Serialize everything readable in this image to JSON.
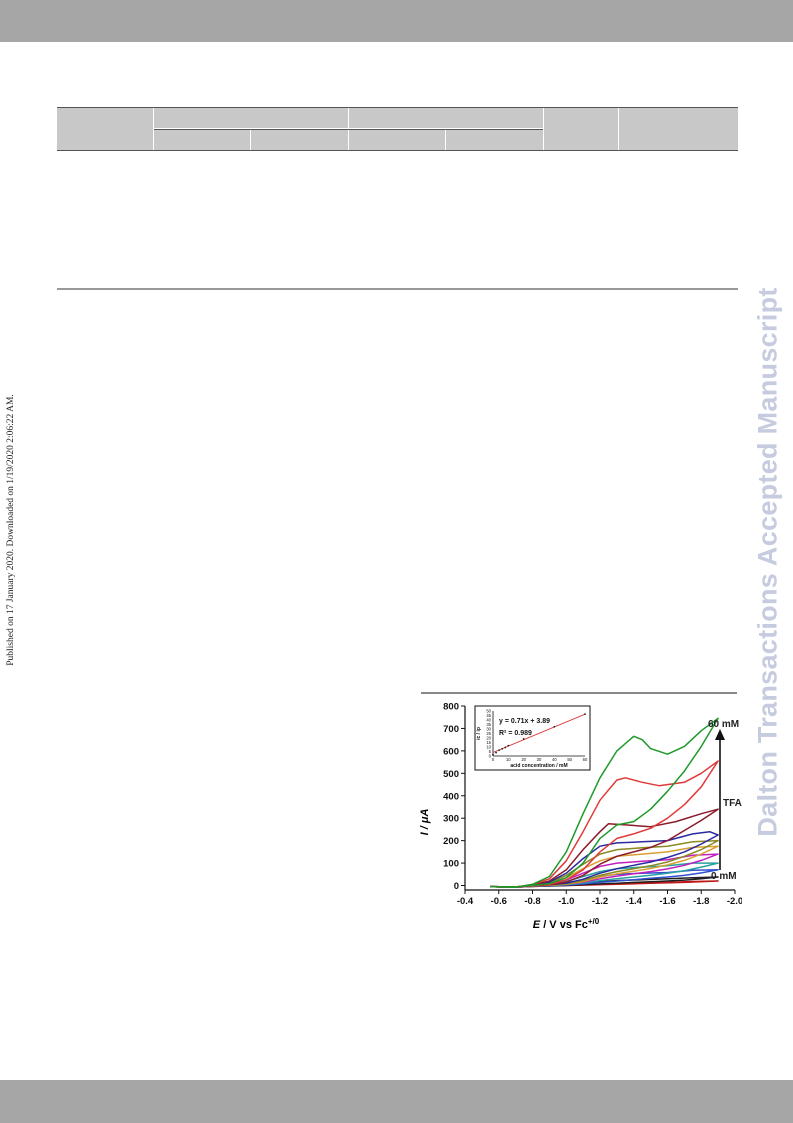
{
  "side_note": "Published on 17 January 2020. Downloaded on 1/19/2020 2:06:22 AM.",
  "watermark": "Dalton Transactions Accepted Manuscript",
  "chart_data": {
    "type": "line",
    "xlabel": "E / V vs Fc+/0",
    "ylabel": "I / μA",
    "xlim": [
      -0.4,
      -2.0
    ],
    "ylim": [
      -20,
      800
    ],
    "x_ticks": [
      "-0.4",
      "-0.6",
      "-0.8",
      "-1.0",
      "-1.2",
      "-1.4",
      "-1.6",
      "-1.8",
      "-2.0"
    ],
    "y_ticks": [
      "0",
      "100",
      "200",
      "300",
      "400",
      "500",
      "600",
      "700",
      "800"
    ],
    "annotations": {
      "top": "60 mM",
      "bottom": "0 mM",
      "arrow_label": "TFA"
    },
    "series": [
      {
        "color": "#1e9a2a",
        "forward": [
          [
            -0.55,
            -5
          ],
          [
            -0.7,
            -8
          ],
          [
            -0.8,
            5
          ],
          [
            -0.9,
            40
          ],
          [
            -1.0,
            150
          ],
          [
            -1.1,
            320
          ],
          [
            -1.2,
            480
          ],
          [
            -1.3,
            600
          ],
          [
            -1.4,
            665
          ],
          [
            -1.45,
            650
          ],
          [
            -1.5,
            610
          ],
          [
            -1.6,
            585
          ],
          [
            -1.7,
            620
          ],
          [
            -1.8,
            690
          ],
          [
            -1.9,
            745
          ]
        ],
        "return": [
          [
            -1.9,
            745
          ],
          [
            -1.8,
            620
          ],
          [
            -1.7,
            510
          ],
          [
            -1.6,
            420
          ],
          [
            -1.5,
            340
          ],
          [
            -1.4,
            285
          ],
          [
            -1.3,
            270
          ],
          [
            -1.2,
            210
          ],
          [
            -1.1,
            100
          ],
          [
            -1.0,
            35
          ],
          [
            -0.9,
            8
          ],
          [
            -0.7,
            -6
          ],
          [
            -0.55,
            -5
          ]
        ]
      },
      {
        "color": "#e03a3a",
        "forward": [
          [
            -0.55,
            -5
          ],
          [
            -0.7,
            -8
          ],
          [
            -0.8,
            5
          ],
          [
            -0.9,
            30
          ],
          [
            -1.0,
            110
          ],
          [
            -1.1,
            240
          ],
          [
            -1.2,
            380
          ],
          [
            -1.3,
            470
          ],
          [
            -1.35,
            480
          ],
          [
            -1.45,
            460
          ],
          [
            -1.55,
            445
          ],
          [
            -1.7,
            460
          ],
          [
            -1.8,
            500
          ],
          [
            -1.9,
            555
          ]
        ],
        "return": [
          [
            -1.9,
            555
          ],
          [
            -1.8,
            440
          ],
          [
            -1.7,
            360
          ],
          [
            -1.6,
            300
          ],
          [
            -1.5,
            255
          ],
          [
            -1.4,
            230
          ],
          [
            -1.3,
            210
          ],
          [
            -1.2,
            150
          ],
          [
            -1.1,
            70
          ],
          [
            -1.0,
            25
          ],
          [
            -0.9,
            5
          ],
          [
            -0.7,
            -6
          ],
          [
            -0.55,
            -5
          ]
        ]
      },
      {
        "color": "#8b1a2a",
        "forward": [
          [
            -0.55,
            -5
          ],
          [
            -0.7,
            -8
          ],
          [
            -0.8,
            3
          ],
          [
            -0.9,
            20
          ],
          [
            -1.0,
            70
          ],
          [
            -1.1,
            160
          ],
          [
            -1.2,
            240
          ],
          [
            -1.25,
            275
          ],
          [
            -1.35,
            270
          ],
          [
            -1.5,
            262
          ],
          [
            -1.65,
            285
          ],
          [
            -1.8,
            320
          ],
          [
            -1.9,
            340
          ]
        ],
        "return": [
          [
            -1.9,
            340
          ],
          [
            -1.8,
            290
          ],
          [
            -1.7,
            245
          ],
          [
            -1.6,
            200
          ],
          [
            -1.5,
            170
          ],
          [
            -1.4,
            150
          ],
          [
            -1.3,
            130
          ],
          [
            -1.2,
            95
          ],
          [
            -1.1,
            45
          ],
          [
            -1.0,
            15
          ],
          [
            -0.9,
            3
          ],
          [
            -0.7,
            -6
          ],
          [
            -0.55,
            -5
          ]
        ]
      },
      {
        "color": "#2a2aa0",
        "forward": [
          [
            -0.55,
            -5
          ],
          [
            -0.7,
            -8
          ],
          [
            -0.9,
            15
          ],
          [
            -1.0,
            55
          ],
          [
            -1.1,
            120
          ],
          [
            -1.2,
            175
          ],
          [
            -1.3,
            190
          ],
          [
            -1.45,
            195
          ],
          [
            -1.6,
            200
          ],
          [
            -1.75,
            230
          ],
          [
            -1.85,
            240
          ],
          [
            -1.9,
            225
          ]
        ],
        "return": [
          [
            -1.9,
            225
          ],
          [
            -1.8,
            185
          ],
          [
            -1.7,
            150
          ],
          [
            -1.6,
            125
          ],
          [
            -1.5,
            105
          ],
          [
            -1.4,
            90
          ],
          [
            -1.3,
            75
          ],
          [
            -1.2,
            55
          ],
          [
            -1.1,
            28
          ],
          [
            -1.0,
            10
          ],
          [
            -0.7,
            -6
          ],
          [
            -0.55,
            -5
          ]
        ]
      },
      {
        "color": "#8a8a22",
        "forward": [
          [
            -0.55,
            -5
          ],
          [
            -0.7,
            -8
          ],
          [
            -0.9,
            12
          ],
          [
            -1.0,
            45
          ],
          [
            -1.1,
            95
          ],
          [
            -1.2,
            140
          ],
          [
            -1.3,
            160
          ],
          [
            -1.45,
            168
          ],
          [
            -1.6,
            175
          ],
          [
            -1.75,
            195
          ],
          [
            -1.9,
            200
          ]
        ],
        "return": [
          [
            -1.9,
            200
          ],
          [
            -1.8,
            160
          ],
          [
            -1.7,
            130
          ],
          [
            -1.6,
            105
          ],
          [
            -1.5,
            88
          ],
          [
            -1.4,
            75
          ],
          [
            -1.3,
            62
          ],
          [
            -1.2,
            45
          ],
          [
            -1.1,
            22
          ],
          [
            -1.0,
            8
          ],
          [
            -0.7,
            -6
          ],
          [
            -0.55,
            -5
          ]
        ]
      },
      {
        "color": "#d8a030",
        "forward": [
          [
            -0.55,
            -5
          ],
          [
            -0.7,
            -8
          ],
          [
            -0.9,
            10
          ],
          [
            -1.0,
            35
          ],
          [
            -1.1,
            75
          ],
          [
            -1.2,
            110
          ],
          [
            -1.3,
            130
          ],
          [
            -1.45,
            140
          ],
          [
            -1.6,
            150
          ],
          [
            -1.75,
            170
          ],
          [
            -1.9,
            175
          ]
        ],
        "return": [
          [
            -1.9,
            175
          ],
          [
            -1.8,
            140
          ],
          [
            -1.7,
            112
          ],
          [
            -1.6,
            92
          ],
          [
            -1.5,
            76
          ],
          [
            -1.4,
            64
          ],
          [
            -1.3,
            52
          ],
          [
            -1.2,
            38
          ],
          [
            -1.1,
            18
          ],
          [
            -1.0,
            6
          ],
          [
            -0.7,
            -6
          ],
          [
            -0.55,
            -5
          ]
        ]
      },
      {
        "color": "#c020c0",
        "forward": [
          [
            -0.55,
            -5
          ],
          [
            -0.7,
            -8
          ],
          [
            -0.9,
            8
          ],
          [
            -1.0,
            25
          ],
          [
            -1.1,
            55
          ],
          [
            -1.2,
            85
          ],
          [
            -1.3,
            100
          ],
          [
            -1.45,
            108
          ],
          [
            -1.6,
            115
          ],
          [
            -1.75,
            135
          ],
          [
            -1.9,
            140
          ]
        ],
        "return": [
          [
            -1.9,
            140
          ],
          [
            -1.8,
            112
          ],
          [
            -1.7,
            90
          ],
          [
            -1.6,
            74
          ],
          [
            -1.5,
            62
          ],
          [
            -1.4,
            52
          ],
          [
            -1.3,
            42
          ],
          [
            -1.2,
            30
          ],
          [
            -1.1,
            15
          ],
          [
            -1.0,
            5
          ],
          [
            -0.7,
            -6
          ],
          [
            -0.55,
            -5
          ]
        ]
      },
      {
        "color": "#2aa0a0",
        "forward": [
          [
            -0.55,
            -5
          ],
          [
            -0.7,
            -8
          ],
          [
            -0.9,
            6
          ],
          [
            -1.0,
            18
          ],
          [
            -1.1,
            40
          ],
          [
            -1.2,
            62
          ],
          [
            -1.3,
            75
          ],
          [
            -1.45,
            82
          ],
          [
            -1.6,
            88
          ],
          [
            -1.75,
            100
          ],
          [
            -1.9,
            100
          ]
        ],
        "return": [
          [
            -1.9,
            100
          ],
          [
            -1.8,
            82
          ],
          [
            -1.7,
            66
          ],
          [
            -1.6,
            55
          ],
          [
            -1.5,
            46
          ],
          [
            -1.4,
            38
          ],
          [
            -1.3,
            30
          ],
          [
            -1.2,
            22
          ],
          [
            -1.1,
            11
          ],
          [
            -1.0,
            3
          ],
          [
            -0.7,
            -6
          ],
          [
            -0.55,
            -5
          ]
        ]
      },
      {
        "color": "#3050d0",
        "forward": [
          [
            -0.55,
            -5
          ],
          [
            -0.7,
            -8
          ],
          [
            -0.9,
            4
          ],
          [
            -1.0,
            12
          ],
          [
            -1.1,
            26
          ],
          [
            -1.2,
            40
          ],
          [
            -1.3,
            50
          ],
          [
            -1.45,
            55
          ],
          [
            -1.6,
            58
          ],
          [
            -1.75,
            68
          ],
          [
            -1.9,
            70
          ]
        ],
        "return": [
          [
            -1.9,
            70
          ],
          [
            -1.8,
            56
          ],
          [
            -1.7,
            45
          ],
          [
            -1.6,
            38
          ],
          [
            -1.5,
            32
          ],
          [
            -1.4,
            26
          ],
          [
            -1.3,
            20
          ],
          [
            -1.2,
            14
          ],
          [
            -1.1,
            7
          ],
          [
            -1.0,
            2
          ],
          [
            -0.7,
            -6
          ],
          [
            -0.55,
            -5
          ]
        ]
      },
      {
        "color": "#202020",
        "forward": [
          [
            -0.55,
            -5
          ],
          [
            -0.7,
            -8
          ],
          [
            -0.9,
            2
          ],
          [
            -1.0,
            6
          ],
          [
            -1.1,
            12
          ],
          [
            -1.2,
            18
          ],
          [
            -1.3,
            22
          ],
          [
            -1.45,
            26
          ],
          [
            -1.6,
            30
          ],
          [
            -1.75,
            35
          ],
          [
            -1.9,
            38
          ]
        ],
        "return": [
          [
            -1.9,
            38
          ],
          [
            -1.8,
            30
          ],
          [
            -1.7,
            24
          ],
          [
            -1.6,
            20
          ],
          [
            -1.5,
            17
          ],
          [
            -1.4,
            14
          ],
          [
            -1.3,
            10
          ],
          [
            -1.2,
            7
          ],
          [
            -1.1,
            3
          ],
          [
            -1.0,
            0
          ],
          [
            -0.7,
            -6
          ],
          [
            -0.55,
            -5
          ]
        ]
      },
      {
        "color": "#c01818",
        "forward": [
          [
            -0.55,
            -5
          ],
          [
            -0.7,
            -8
          ],
          [
            -0.9,
            0
          ],
          [
            -1.0,
            2
          ],
          [
            -1.2,
            6
          ],
          [
            -1.4,
            10
          ],
          [
            -1.6,
            14
          ],
          [
            -1.75,
            18
          ],
          [
            -1.9,
            20
          ]
        ],
        "return": [
          [
            -1.9,
            20
          ],
          [
            -1.7,
            14
          ],
          [
            -1.5,
            10
          ],
          [
            -1.3,
            6
          ],
          [
            -1.1,
            2
          ],
          [
            -0.9,
            -2
          ],
          [
            -0.7,
            -6
          ],
          [
            -0.55,
            -5
          ]
        ]
      }
    ],
    "inset": {
      "type": "scatter",
      "xlabel": "acid concentration / mM",
      "ylabel": "ic / ip",
      "xlim": [
        0,
        60
      ],
      "ylim": [
        0,
        50
      ],
      "x_ticks": [
        "0",
        "10",
        "20",
        "30",
        "40",
        "50",
        "60"
      ],
      "y_ticks": [
        "0",
        "5",
        "10",
        "15",
        "20",
        "25",
        "30",
        "35",
        "40",
        "45",
        "50"
      ],
      "equation": "y = 0.71x + 3.89",
      "r2": "R² = 0.989",
      "points": [
        [
          0,
          1.5
        ],
        [
          2,
          3.8
        ],
        [
          4,
          6.5
        ],
        [
          6,
          8.0
        ],
        [
          8,
          9.5
        ],
        [
          10,
          11.5
        ],
        [
          20,
          19.0
        ],
        [
          40,
          32.5
        ],
        [
          60,
          46.5
        ]
      ],
      "fit": {
        "slope": 0.71,
        "intercept": 3.89
      }
    }
  }
}
